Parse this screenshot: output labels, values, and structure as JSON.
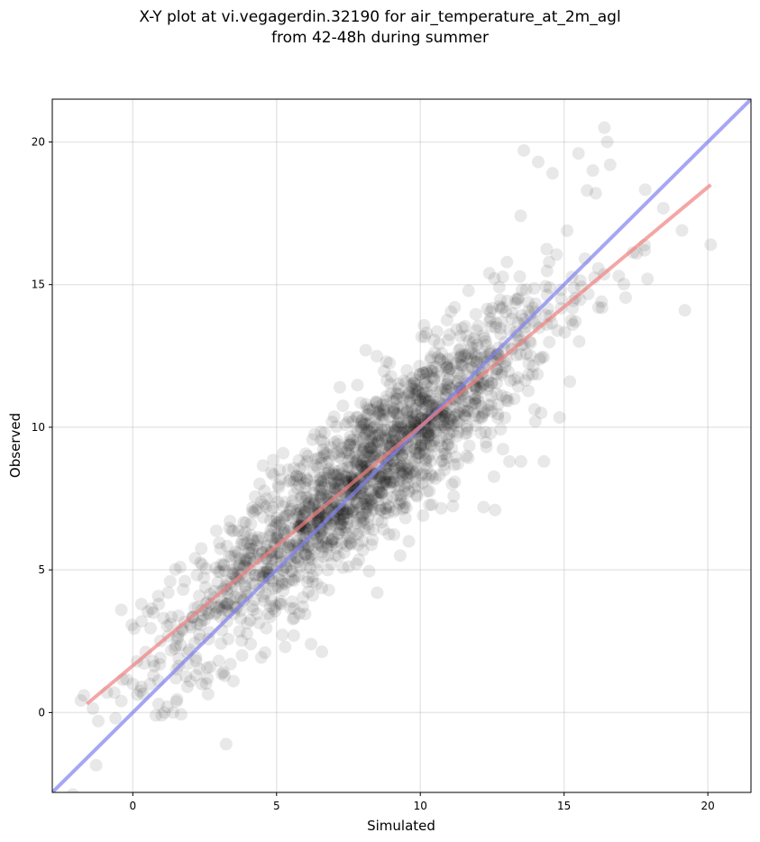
{
  "chart_data": {
    "type": "scatter",
    "title": "X-Y plot at vi.vegagerdin.32190 for air_temperature_at_2m_agl\nfrom 42-48h during summer",
    "xlabel": "Simulated",
    "ylabel": "Observed",
    "xlim": [
      -2.8,
      21.5
    ],
    "ylim": [
      -2.8,
      21.5
    ],
    "xticks": [
      0,
      5,
      10,
      15,
      20
    ],
    "yticks": [
      0,
      5,
      10,
      15,
      20
    ],
    "grid": true,
    "point_color": "#000000",
    "point_alpha": 0.09,
    "regression_line": {
      "color": "#f08080",
      "x": [
        -1.6,
        20.1
      ],
      "y": [
        0.3,
        18.5
      ]
    },
    "identity_line": {
      "color": "#8080f0",
      "x": [
        -2.8,
        21.5
      ],
      "y": [
        -2.8,
        21.5
      ]
    },
    "cloud_model": {
      "n": 1800,
      "x_center": 8.2,
      "x_sd": 3.2,
      "slope": 0.84,
      "intercept": 1.62,
      "noise_sd": 1.3
    },
    "series": [
      {
        "x": [
          -1.7,
          -1.2,
          -0.9,
          -0.6,
          -0.4,
          0.0,
          0.3,
          0.6,
          0.8,
          0.9,
          1.0,
          1.1,
          1.2,
          1.4,
          1.5,
          0.7,
          1.9,
          2.0,
          2.4,
          2.7,
          -0.4,
          0.3,
          0.9,
          1.3,
          1.6,
          1.9,
          2.2,
          2.6,
          3.4,
          3.5,
          3.8,
          4.1,
          4.6,
          5.3,
          5.6,
          6.2,
          5.1,
          5.7,
          7.2,
          8.1,
          8.5,
          9.3,
          9.6,
          11.1,
          12.2,
          12.6,
          13.1,
          13.5,
          14.0,
          14.2,
          14.3,
          14.4,
          14.9,
          15.2,
          15.3,
          15.5,
          15.8,
          16.0,
          16.1,
          16.2,
          16.3,
          16.4,
          16.5,
          16.6,
          16.9,
          17.8,
          17.9,
          19.1,
          19.2,
          20.1,
          13.6,
          14.1,
          14.6,
          12.4,
          11.8
        ],
        "y": [
          0.6,
          -0.3,
          0.7,
          -0.2,
          0.4,
          1.0,
          0.9,
          1.0,
          -0.1,
          0.3,
          -0.1,
          0.0,
          0.2,
          0.0,
          1.2,
          1.8,
          0.9,
          1.1,
          1.0,
          1.6,
          3.6,
          3.8,
          3.8,
          4.6,
          1.9,
          2.1,
          1.3,
          1.2,
          1.7,
          1.1,
          2.0,
          2.4,
          2.1,
          2.3,
          2.7,
          2.4,
          8.5,
          8.3,
          11.4,
          12.7,
          4.2,
          5.5,
          6.0,
          8.0,
          7.2,
          7.1,
          8.8,
          8.8,
          10.2,
          10.5,
          8.8,
          13.6,
          14.5,
          11.6,
          13.6,
          19.6,
          18.3,
          19.0,
          18.2,
          14.2,
          14.4,
          20.5,
          20.0,
          19.2,
          15.3,
          16.2,
          15.2,
          16.9,
          14.1,
          16.4,
          19.7,
          19.3,
          18.9,
          15.4,
          10.8
        ]
      }
    ]
  }
}
